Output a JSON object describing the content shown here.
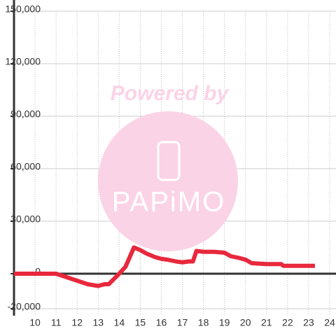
{
  "chart_data": {
    "type": "line",
    "x": [
      9,
      11,
      11.5,
      12,
      12.5,
      13,
      13.3,
      13.5,
      14,
      14.3,
      14.7,
      15,
      15.3,
      15.7,
      16,
      16.3,
      16.7,
      17,
      17.3,
      17.5,
      17.67,
      18,
      18.5,
      19,
      19.3,
      19.7,
      20,
      20.3,
      21,
      21.7,
      21.8,
      22,
      23.3
    ],
    "series": [
      {
        "color": "#e8283c",
        "values": [
          0,
          0,
          -2000,
          -4000,
          -6000,
          -7000,
          -6000,
          -6000,
          0,
          4000,
          15000,
          13500,
          11500,
          9500,
          8500,
          8000,
          7000,
          6500,
          7000,
          7000,
          13000,
          12500,
          12500,
          12000,
          10000,
          9000,
          8000,
          6000,
          5500,
          5500,
          4500,
          4500,
          4500
        ]
      }
    ],
    "xlim": [
      9,
      24.3
    ],
    "xticks": [
      10,
      11,
      12,
      13,
      14,
      15,
      16,
      17,
      18,
      19,
      20,
      21,
      22,
      23,
      24
    ],
    "ylim": [
      -24000,
      150000
    ],
    "yticks": [
      {
        "value": -20000,
        "label": "-20,000"
      },
      0,
      {
        "value": 30000,
        "label": "30,000"
      },
      {
        "value": 60000,
        "label": "60,000"
      },
      {
        "value": 90000,
        "label": "90,000"
      },
      {
        "value": 120000,
        "label": "120,000"
      },
      {
        "value": 150000,
        "label": "150,000"
      }
    ],
    "grid": true,
    "watermark": {
      "line1": "Powered by",
      "line2": "PAPiMO"
    }
  }
}
